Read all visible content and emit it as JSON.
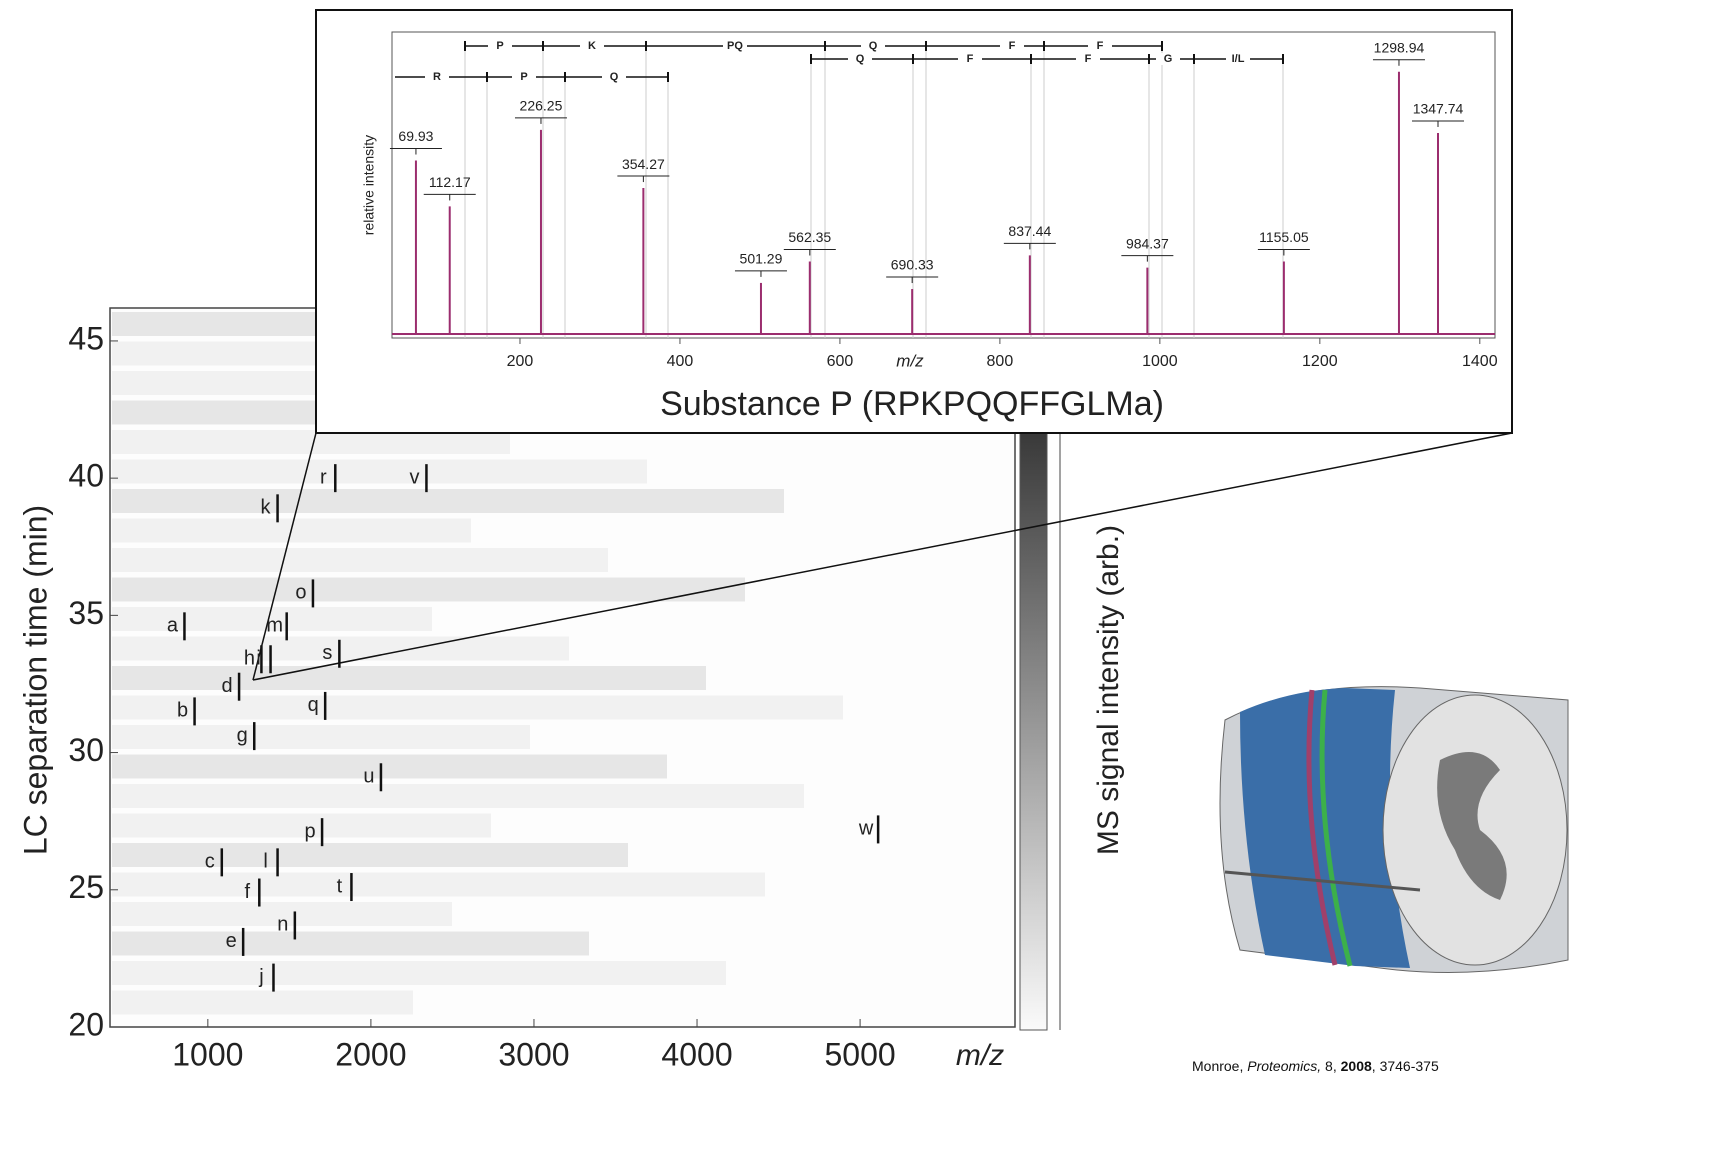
{
  "chart_data": [
    {
      "type": "heatmap",
      "xlabel": "m/z",
      "ylabel": "LC separation time (min)",
      "colorbar_label": "MS signal intensity (arb.)",
      "xlim": [
        400,
        5950
      ],
      "ylim": [
        20,
        46.2
      ],
      "xticks": [
        1000,
        2000,
        3000,
        4000,
        5000
      ],
      "yticks": [
        20,
        25,
        30,
        35,
        40,
        45
      ],
      "annotations": [
        {
          "label": "a",
          "x": 783,
          "y": 34.6
        },
        {
          "label": "b",
          "x": 845,
          "y": 31.5
        },
        {
          "label": "c",
          "x": 1012,
          "y": 26.0
        },
        {
          "label": "d",
          "x": 1118,
          "y": 32.4
        },
        {
          "label": "e",
          "x": 1143,
          "y": 23.1
        },
        {
          "label": "f",
          "x": 1242,
          "y": 24.9
        },
        {
          "label": "g",
          "x": 1211,
          "y": 30.6
        },
        {
          "label": "h",
          "x": 1255,
          "y": 33.4
        },
        {
          "label": "i",
          "x": 1311,
          "y": 33.4
        },
        {
          "label": "j",
          "x": 1329,
          "y": 21.8
        },
        {
          "label": "k",
          "x": 1354,
          "y": 38.9
        },
        {
          "label": "l",
          "x": 1354,
          "y": 26.0
        },
        {
          "label": "m",
          "x": 1410,
          "y": 34.6
        },
        {
          "label": "n",
          "x": 1460,
          "y": 23.7
        },
        {
          "label": "o",
          "x": 1571,
          "y": 35.8
        },
        {
          "label": "p",
          "x": 1627,
          "y": 27.1
        },
        {
          "label": "q",
          "x": 1646,
          "y": 31.7
        },
        {
          "label": "r",
          "x": 1708,
          "y": 40.0
        },
        {
          "label": "s",
          "x": 1733,
          "y": 33.6
        },
        {
          "label": "t",
          "x": 1807,
          "y": 25.1
        },
        {
          "label": "u",
          "x": 1988,
          "y": 29.1
        },
        {
          "label": "v",
          "x": 2267,
          "y": 40.0
        },
        {
          "label": "w",
          "x": 5037,
          "y": 27.2
        }
      ]
    },
    {
      "type": "spectrum",
      "title": "Substance P (RPKPQQFFGLMa)",
      "xlabel": "m/z",
      "ylabel": "relative intensity",
      "color": "#9b2d6e",
      "xlim": [
        40,
        1419
      ],
      "ylim": [
        0,
        100
      ],
      "xticks": [
        200,
        400,
        600,
        800,
        1000,
        1200,
        1400
      ],
      "x": [
        69.93,
        112.17,
        226.25,
        354.27,
        501.29,
        562.35,
        690.33,
        837.44,
        984.37,
        1155.05,
        1298.94,
        1347.74
      ],
      "values": [
        58,
        43,
        68,
        49,
        18,
        25,
        16,
        27,
        23,
        25,
        87,
        67
      ],
      "ion_ladders": [
        [
          "P",
          "K",
          "PQ",
          "Q",
          "F",
          "F"
        ],
        [
          "Q",
          "F",
          "F",
          "G",
          "I/L"
        ],
        [
          "R",
          "P",
          "Q"
        ]
      ]
    }
  ],
  "citation": {
    "author": "Monroe, ",
    "journal": "Proteomics,",
    "volume": " 8, ",
    "year": "2008",
    "pages": ", 3746-375"
  }
}
